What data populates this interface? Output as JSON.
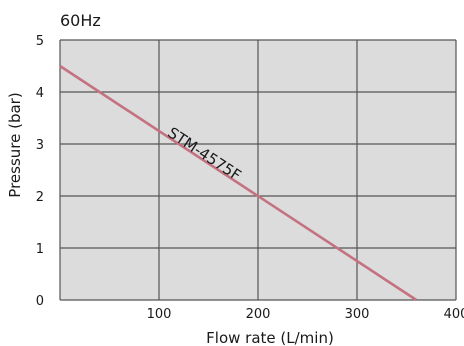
{
  "chart_data": {
    "type": "line",
    "title": "60Hz",
    "xlabel": "Flow rate (L/min)",
    "ylabel": "Pressure (bar)",
    "xlim": [
      0,
      400
    ],
    "ylim": [
      0,
      5
    ],
    "xticks": [
      100,
      200,
      300,
      400
    ],
    "yticks": [
      0,
      1,
      2,
      3,
      4,
      5
    ],
    "grid": true,
    "plot_background": "#dcdcdc",
    "grid_color": "#555555",
    "series": [
      {
        "name": "STM-4575F",
        "color": "#c47280",
        "x": [
          0,
          360
        ],
        "y": [
          4.5,
          0
        ]
      }
    ]
  }
}
